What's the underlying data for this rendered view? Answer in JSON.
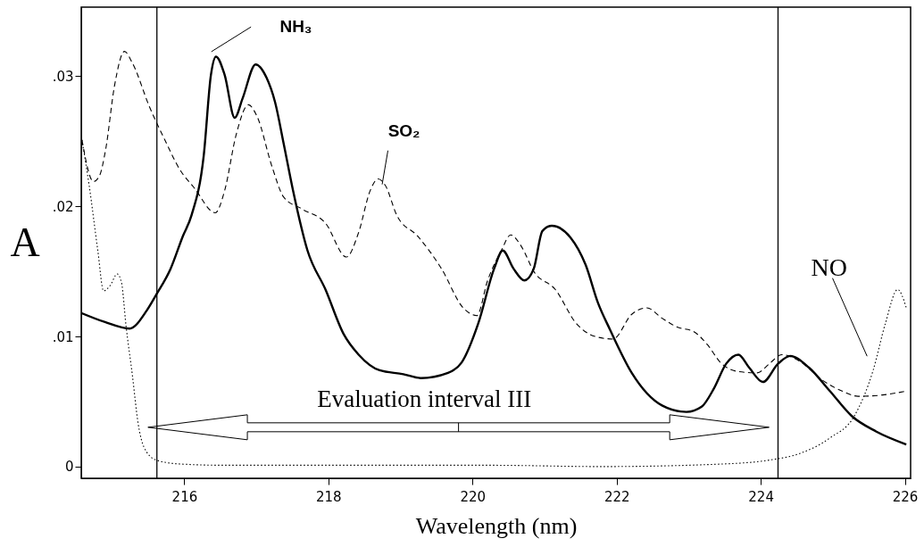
{
  "chart_data": {
    "type": "line",
    "xlabel": "Wavelength (nm)",
    "ylabel": "A",
    "xlim": [
      214.57,
      226.08
    ],
    "ylim": [
      -0.0009,
      0.0353
    ],
    "xticks": [
      216,
      218,
      220,
      222,
      224,
      226
    ],
    "yticks": [
      0,
      {
        "value": 0.01,
        "label": ".01"
      },
      {
        "value": 0.02,
        "label": ".02"
      },
      {
        "value": 0.03,
        "label": ".03"
      }
    ],
    "grid": false,
    "legend": false,
    "series": [
      {
        "name": "NH₃",
        "color": "#000000",
        "line_style": "solid",
        "x": [
          214.57,
          214.9,
          215.24,
          215.48,
          215.61,
          215.81,
          215.98,
          216.1,
          216.27,
          216.37,
          216.44,
          216.56,
          216.7,
          216.81,
          216.99,
          217.14,
          217.26,
          217.38,
          217.51,
          217.71,
          217.96,
          218.21,
          218.42,
          218.71,
          219.04,
          219.28,
          219.66,
          219.85,
          220.08,
          220.3,
          220.42,
          220.57,
          220.72,
          220.85,
          220.97,
          221.1,
          221.36,
          221.57,
          221.74,
          221.91,
          222.21,
          222.63,
          222.97,
          223.18,
          223.35,
          223.52,
          223.69,
          223.84,
          224.03,
          224.24,
          224.41,
          224.67,
          224.96,
          225.26,
          225.6,
          226.02
        ],
        "values": [
          0.0118,
          0.0111,
          0.0106,
          0.012,
          0.0132,
          0.0152,
          0.0177,
          0.0193,
          0.0239,
          0.0301,
          0.0315,
          0.0301,
          0.0268,
          0.0283,
          0.0309,
          0.0299,
          0.028,
          0.0248,
          0.0212,
          0.0166,
          0.0136,
          0.0102,
          0.0086,
          0.0074,
          0.0071,
          0.0068,
          0.0072,
          0.008,
          0.011,
          0.0152,
          0.0166,
          0.0152,
          0.0143,
          0.0152,
          0.0181,
          0.0185,
          0.0176,
          0.0155,
          0.0126,
          0.0105,
          0.0072,
          0.0047,
          0.0042,
          0.0046,
          0.006,
          0.0079,
          0.0086,
          0.0076,
          0.0065,
          0.0079,
          0.0085,
          0.0076,
          0.0058,
          0.0039,
          0.0027,
          0.0017
        ]
      },
      {
        "name": "SO₂",
        "color": "#000000",
        "line_style": "dashed",
        "x": [
          214.58,
          214.74,
          214.82,
          214.91,
          215.03,
          215.17,
          215.28,
          215.52,
          215.73,
          215.94,
          216.14,
          216.43,
          216.56,
          216.72,
          216.89,
          217.01,
          217.22,
          217.38,
          217.63,
          217.96,
          218.25,
          218.42,
          218.58,
          218.69,
          218.79,
          218.95,
          219.24,
          219.57,
          219.87,
          220.06,
          220.21,
          220.4,
          220.53,
          220.68,
          220.85,
          221.15,
          221.44,
          221.7,
          221.95,
          222.21,
          222.42,
          222.63,
          222.85,
          223.06,
          223.27,
          223.44,
          223.69,
          223.95,
          224.12,
          224.29,
          224.54,
          224.84,
          225.13,
          225.35,
          225.69,
          226.02
        ],
        "values": [
          0.0251,
          0.0219,
          0.0223,
          0.0244,
          0.0292,
          0.0319,
          0.031,
          0.0276,
          0.0251,
          0.0228,
          0.0214,
          0.0195,
          0.0212,
          0.0255,
          0.0278,
          0.0269,
          0.023,
          0.0207,
          0.0198,
          0.0187,
          0.0161,
          0.018,
          0.0212,
          0.0221,
          0.0216,
          0.0193,
          0.0177,
          0.0152,
          0.0122,
          0.0116,
          0.0143,
          0.0166,
          0.0178,
          0.0169,
          0.015,
          0.0136,
          0.011,
          0.01,
          0.0098,
          0.0117,
          0.0122,
          0.0114,
          0.0107,
          0.0104,
          0.0093,
          0.008,
          0.0073,
          0.0072,
          0.0079,
          0.0086,
          0.0081,
          0.0067,
          0.0058,
          0.0054,
          0.0055,
          0.0058
        ]
      },
      {
        "name": "NO",
        "color": "#000000",
        "line_style": "dotted",
        "x": [
          214.58,
          214.68,
          214.8,
          214.88,
          214.97,
          215.07,
          215.13,
          215.19,
          215.28,
          215.36,
          215.44,
          215.61,
          215.94,
          216.56,
          217.8,
          219.04,
          220.27,
          221.78,
          223.48,
          224.12,
          224.54,
          224.96,
          225.3,
          225.56,
          225.73,
          225.9,
          226.02
        ],
        "values": [
          0.0251,
          0.0216,
          0.0166,
          0.0135,
          0.0139,
          0.0148,
          0.0141,
          0.0109,
          0.007,
          0.0033,
          0.0015,
          0.0005,
          0.0002,
          0.0001,
          0.0001,
          0.0001,
          0.0001,
          0.0,
          0.0002,
          0.0005,
          0.001,
          0.0022,
          0.0039,
          0.0074,
          0.011,
          0.0136,
          0.0122
        ]
      }
    ],
    "ref_lines": [
      {
        "axis": "x",
        "value": 215.62,
        "color": "#000000"
      },
      {
        "axis": "x",
        "value": 224.24,
        "color": "#000000"
      }
    ],
    "annotations": [
      "Evaluation interval III"
    ]
  }
}
